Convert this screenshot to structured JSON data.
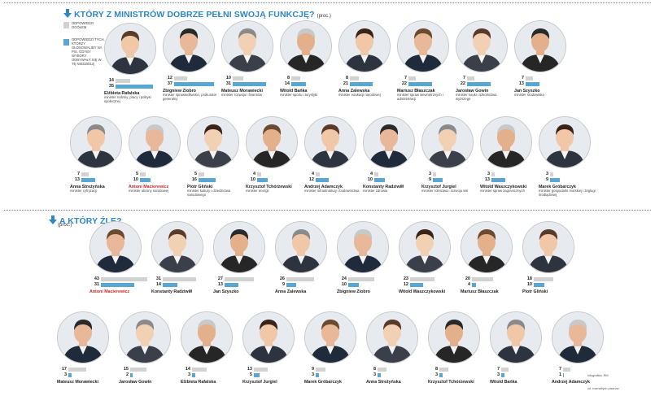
{
  "section1": {
    "title": "KTÓRY Z MINISTRÓW DOBRZE PEŁNI SWOJĄ FUNKCJĘ?",
    "unit": "(proc.)"
  },
  "section2": {
    "title": "A KTÓRY ŹLE?",
    "unit": "(proc.)"
  },
  "legend": {
    "overall": "ODPOWIEDZI OGÓŁEM",
    "pis": "ODPOWIEDZI TYCH, KTÓRZY GŁOSOWALIBY NA PIS, GDYBY WYBORY ODBYWAŁY SIĘ W TĘ NIEDZIELĘ"
  },
  "colors": {
    "accent": "#2f86c7",
    "bar_overall": "#d2d2d2",
    "bar_pis": "#5aa6d3",
    "highlight_name": "#d0262a"
  },
  "credits": {
    "infographic": "infografika: RM",
    "source": "źrł. rozmaitych pisarow"
  },
  "chart_data": [
    {
      "type": "bar",
      "title": "KTÓRY Z MINISTRÓW DOBRZE PEŁNI SWOJĄ FUNKCJĘ?",
      "unit": "(proc.)",
      "series": [
        {
          "name": "ODPOWIEDZI OGÓŁEM",
          "key": "overall"
        },
        {
          "name": "ODPOWIEDZI TYCH, KTÓRZY GŁOSOWALIBY NA PIS, GDYBY WYBORY ODBYWAŁY SIĘ W TĘ NIEDZIELĘ",
          "key": "pis"
        }
      ],
      "ministers": [
        {
          "name": "Elżbieta Rafalska",
          "role": "minister rodziny, pracy i polityki społecznej",
          "overall": 14,
          "pis": 35
        },
        {
          "name": "Zbigniew Ziobro",
          "role": "minister sprawiedliwości, prokurator generalny",
          "overall": 12,
          "pis": 37
        },
        {
          "name": "Mateusz Morawiecki",
          "role": "minister rozwoju i finansów",
          "overall": 10,
          "pis": 31
        },
        {
          "name": "Witold Bańka",
          "role": "minister sportu i turystyki",
          "overall": 8,
          "pis": 14
        },
        {
          "name": "Anna Zalewska",
          "role": "minister edukacji narodowej",
          "overall": 8,
          "pis": 21
        },
        {
          "name": "Mariusz Błaszczak",
          "role": "minister spraw wewnętrznych i administracji",
          "overall": 7,
          "pis": 22
        },
        {
          "name": "Jarosław Gowin",
          "role": "minister nauki i szkolnictwa wyższego",
          "overall": 7,
          "pis": 22
        },
        {
          "name": "Jan Szyszko",
          "role": "minister środowiska",
          "overall": 7,
          "pis": 13
        },
        {
          "name": "Anna Streżyńska",
          "role": "minister cyfryzacji",
          "overall": 7,
          "pis": 13
        },
        {
          "name": "Antoni Macierewicz",
          "role": "minister obrony narodowej",
          "overall": 5,
          "pis": 10,
          "highlight": true
        },
        {
          "name": "Piotr Gliński",
          "role": "minister kultury i dziedzictwa narodowego",
          "overall": 5,
          "pis": 16
        },
        {
          "name": "Krzysztof Tchórzewski",
          "role": "minister energii",
          "overall": 4,
          "pis": 10
        },
        {
          "name": "Andrzej Adamczyk",
          "role": "minister infrastruktury i budownictwa",
          "overall": 4,
          "pis": 12
        },
        {
          "name": "Konstanty Radziwiłł",
          "role": "minister zdrowia",
          "overall": 4,
          "pis": 10
        },
        {
          "name": "Krzysztof Jurgiel",
          "role": "minister rolnictwa i rozwoju wsi",
          "overall": 3,
          "pis": 9
        },
        {
          "name": "Witold Waszczykowski",
          "role": "minister spraw zagranicznych",
          "overall": 3,
          "pis": 13
        },
        {
          "name": "Marek Gróbarczyk",
          "role": "minister gospodarki morskiej i żeglugi śródlądowej",
          "overall": 3,
          "pis": 9
        }
      ]
    },
    {
      "type": "bar",
      "title": "A KTÓRY ŹLE?",
      "unit": "(proc.)",
      "ministers": [
        {
          "name": "Antoni Macierewicz",
          "overall": 43,
          "pis": 31,
          "highlight": true
        },
        {
          "name": "Konstanty Radziwiłł",
          "overall": 31,
          "pis": 14
        },
        {
          "name": "Jan Szyszko",
          "overall": 27,
          "pis": 13
        },
        {
          "name": "Anna Zalewska",
          "overall": 26,
          "pis": 9
        },
        {
          "name": "Zbigniew Ziobro",
          "overall": 24,
          "pis": 10
        },
        {
          "name": "Witold Waszczykowski",
          "overall": 23,
          "pis": 12
        },
        {
          "name": "Mariusz Błaszczak",
          "overall": 20,
          "pis": 4
        },
        {
          "name": "Piotr Gliński",
          "overall": 18,
          "pis": 10
        },
        {
          "name": "Mateusz Morawiecki",
          "overall": 17,
          "pis": 3
        },
        {
          "name": "Jarosław Gowin",
          "overall": 15,
          "pis": 2
        },
        {
          "name": "Elżbieta Rafalska",
          "overall": 14,
          "pis": 3
        },
        {
          "name": "Krzysztof Jurgiel",
          "overall": 13,
          "pis": 5
        },
        {
          "name": "Marek Gróbarczyk",
          "overall": 9,
          "pis": 3
        },
        {
          "name": "Anna Streżyńska",
          "overall": 8,
          "pis": 3
        },
        {
          "name": "Krzysztof Tchórzewski",
          "overall": 8,
          "pis": 3
        },
        {
          "name": "Witold Bańka",
          "overall": 7,
          "pis": 3
        },
        {
          "name": "Andrzej Adamczyk",
          "overall": 7,
          "pis": 1
        }
      ]
    }
  ]
}
